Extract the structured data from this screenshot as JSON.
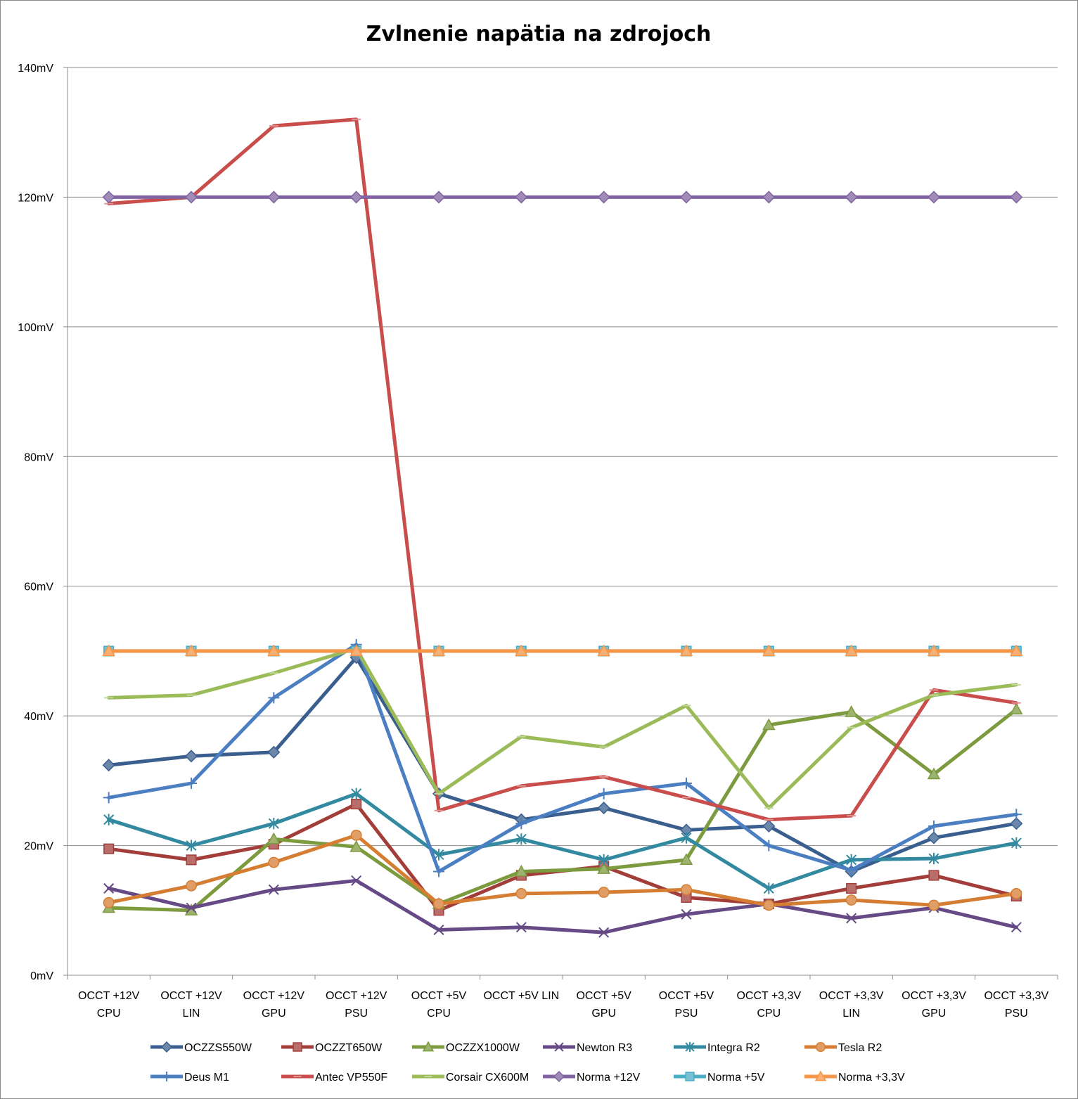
{
  "chart_data": {
    "type": "line",
    "title": "Zvlnenie napätia na zdrojoch",
    "xlabel": "",
    "ylabel": "",
    "ylim": [
      0,
      140
    ],
    "y_ticks": [
      "0mV",
      "20mV",
      "40mV",
      "60mV",
      "80mV",
      "100mV",
      "120mV",
      "140mV"
    ],
    "grid": true,
    "legend_position": "bottom",
    "categories": [
      [
        "OCCT +12V",
        "CPU"
      ],
      [
        "OCCT +12V",
        "LIN"
      ],
      [
        "OCCT +12V",
        "GPU"
      ],
      [
        "OCCT +12V",
        "PSU"
      ],
      [
        "OCCT +5V",
        "CPU"
      ],
      [
        "OCCT +5V LIN"
      ],
      [
        "OCCT +5V",
        "GPU"
      ],
      [
        "OCCT +5V",
        "PSU"
      ],
      [
        "OCCT +3,3V",
        "CPU"
      ],
      [
        "OCCT +3,3V",
        "LIN"
      ],
      [
        "OCCT +3,3V",
        "GPU"
      ],
      [
        "OCCT +3,3V",
        "PSU"
      ]
    ],
    "series": [
      {
        "name": "OCZZS550W",
        "color": "#3A5F8E",
        "marker": "diamond",
        "values": [
          32.4,
          33.8,
          34.4,
          49,
          28,
          24,
          25.8,
          22.4,
          23,
          16,
          21.2,
          23.4
        ]
      },
      {
        "name": "OCZZT650W",
        "color": "#A23D3A",
        "marker": "square",
        "values": [
          19.5,
          17.8,
          20.2,
          26.4,
          10,
          15.4,
          16.8,
          12,
          11,
          13.4,
          15.4,
          12.2
        ]
      },
      {
        "name": "OCZZX1000W",
        "color": "#7C9A3E",
        "marker": "triangle",
        "values": [
          10.4,
          10,
          21,
          19.8,
          11,
          16,
          16.4,
          17.8,
          38.6,
          40.6,
          31,
          41
        ]
      },
      {
        "name": "Newton R3",
        "color": "#664A86",
        "marker": "x",
        "values": [
          13.4,
          10.4,
          13.2,
          14.6,
          7,
          7.4,
          6.6,
          9.4,
          11,
          8.8,
          10.4,
          7.4
        ]
      },
      {
        "name": "Integra R2",
        "color": "#338AA0",
        "marker": "asterisk",
        "values": [
          24,
          20,
          23.4,
          28,
          18.6,
          21,
          17.8,
          21.2,
          13.4,
          17.8,
          18,
          20.4
        ]
      },
      {
        "name": "Tesla R2",
        "color": "#D57E33",
        "marker": "circle",
        "values": [
          11.2,
          13.8,
          17.4,
          21.6,
          11,
          12.6,
          12.8,
          13.2,
          10.8,
          11.6,
          10.8,
          12.6
        ]
      },
      {
        "name": "Deus M1",
        "color": "#4B7FC2",
        "marker": "plus",
        "values": [
          27.4,
          29.6,
          42.8,
          51,
          16,
          23.4,
          28,
          29.6,
          20,
          16.2,
          23,
          24.8
        ]
      },
      {
        "name": "Antec VP550F",
        "color": "#C84D4B",
        "marker": "dash",
        "values": [
          119,
          120,
          131,
          132,
          25.4,
          29.2,
          30.6,
          27.4,
          24,
          24.6,
          44,
          42
        ]
      },
      {
        "name": "Corsair CX600M",
        "color": "#9BBB59",
        "marker": "dash",
        "values": [
          42.8,
          43.2,
          46.6,
          50.4,
          28,
          36.8,
          35.2,
          41.6,
          25.8,
          38.2,
          43.2,
          44.8
        ]
      },
      {
        "name": "Norma +12V",
        "color": "#8064A2",
        "marker": "diamond",
        "values": [
          120,
          120,
          120,
          120,
          120,
          120,
          120,
          120,
          120,
          120,
          120,
          120
        ]
      },
      {
        "name": "Norma +5V",
        "color": "#4BACC6",
        "marker": "square",
        "values": [
          50,
          50,
          50,
          50,
          50,
          50,
          50,
          50,
          50,
          50,
          50,
          50
        ]
      },
      {
        "name": "Norma +3,3V",
        "color": "#F79646",
        "marker": "triangle",
        "values": [
          50,
          50,
          50,
          50,
          50,
          50,
          50,
          50,
          50,
          50,
          50,
          50
        ]
      }
    ]
  }
}
